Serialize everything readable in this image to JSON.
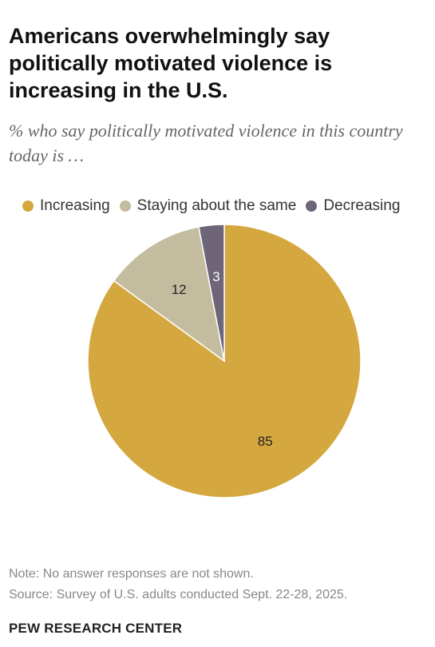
{
  "header": {
    "title": "Americans overwhelmingly say politically motivated violence is increasing in the U.S.",
    "subtitle": "% who say politically motivated violence in this country today is …"
  },
  "chart_data": {
    "type": "pie",
    "categories": [
      "Increasing",
      "Staying about the same",
      "Decreasing"
    ],
    "values": [
      85,
      12,
      3
    ],
    "data_labels": [
      "85",
      "12",
      "3"
    ],
    "colors": [
      "#d4a73f",
      "#c3bc9f",
      "#6e6578"
    ],
    "label_colors": [
      "#222222",
      "#222222",
      "#ffffff"
    ],
    "legend_position": "top",
    "start": "12 o'clock, clockwise"
  },
  "footer": {
    "note": "Note: No answer responses are not shown.",
    "source": "Source: Survey of U.S. adults conducted Sept. 22-28, 2025.",
    "org": "PEW RESEARCH CENTER"
  }
}
